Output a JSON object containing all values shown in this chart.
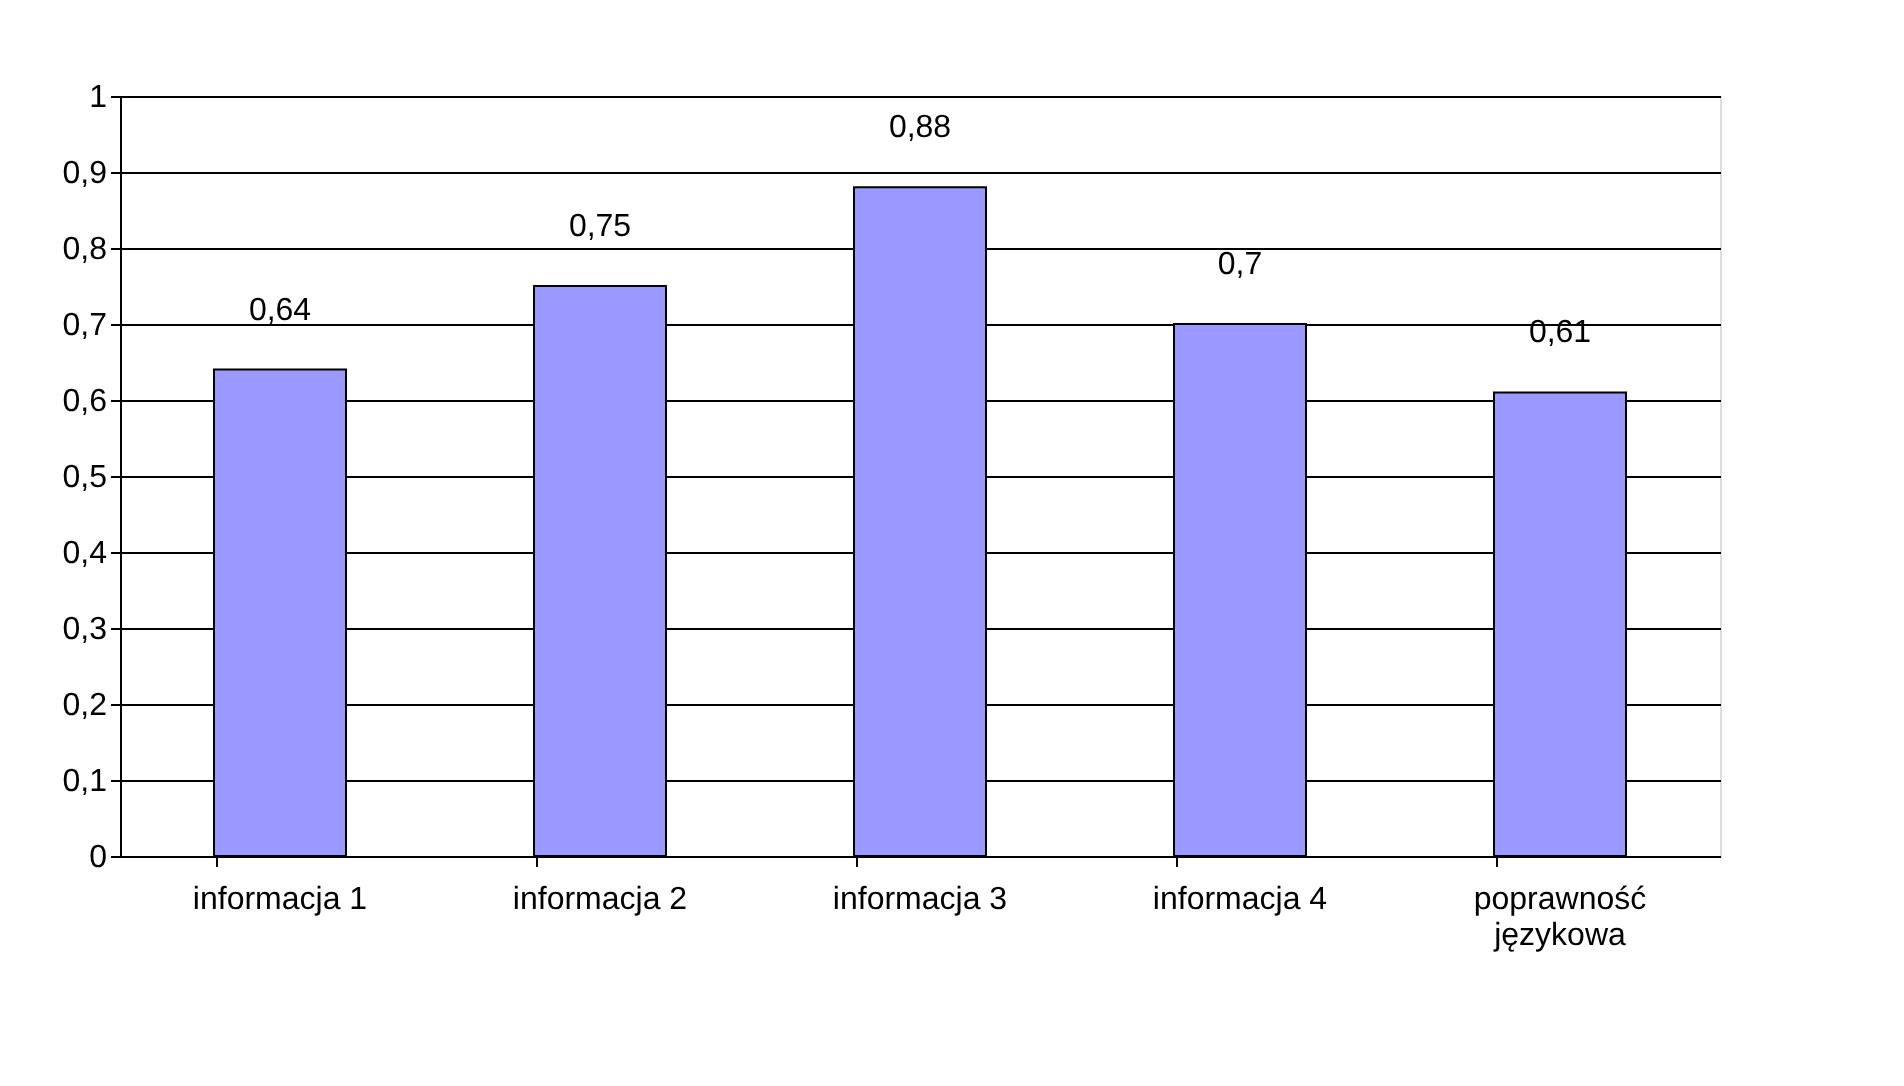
{
  "chart_data": {
    "type": "bar",
    "categories": [
      "informacja 1",
      "informacja 2",
      "informacja 3",
      "informacja 4",
      "poprawność językowa"
    ],
    "values": [
      0.64,
      0.75,
      0.88,
      0.7,
      0.61
    ],
    "value_labels": [
      "0,64",
      "0,75",
      "0,88",
      "0,7",
      "0,61"
    ],
    "color": "#9999ff",
    "ylim": [
      0,
      1
    ],
    "yticks": [
      0,
      {
        "value": 0.1,
        "label": "0,1"
      },
      {
        "value": 0.2,
        "label": "0,2"
      },
      {
        "value": 0.3,
        "label": "0,3"
      },
      {
        "value": 0.4,
        "label": "0,4"
      },
      {
        "value": 0.5,
        "label": "0,5"
      },
      {
        "value": 0.6,
        "label": "0,6"
      },
      {
        "value": 0.7,
        "label": "0,7"
      },
      {
        "value": 0.8,
        "label": "0,8"
      },
      {
        "value": 0.9,
        "label": "0,9"
      },
      1
    ],
    "grid": "y"
  }
}
